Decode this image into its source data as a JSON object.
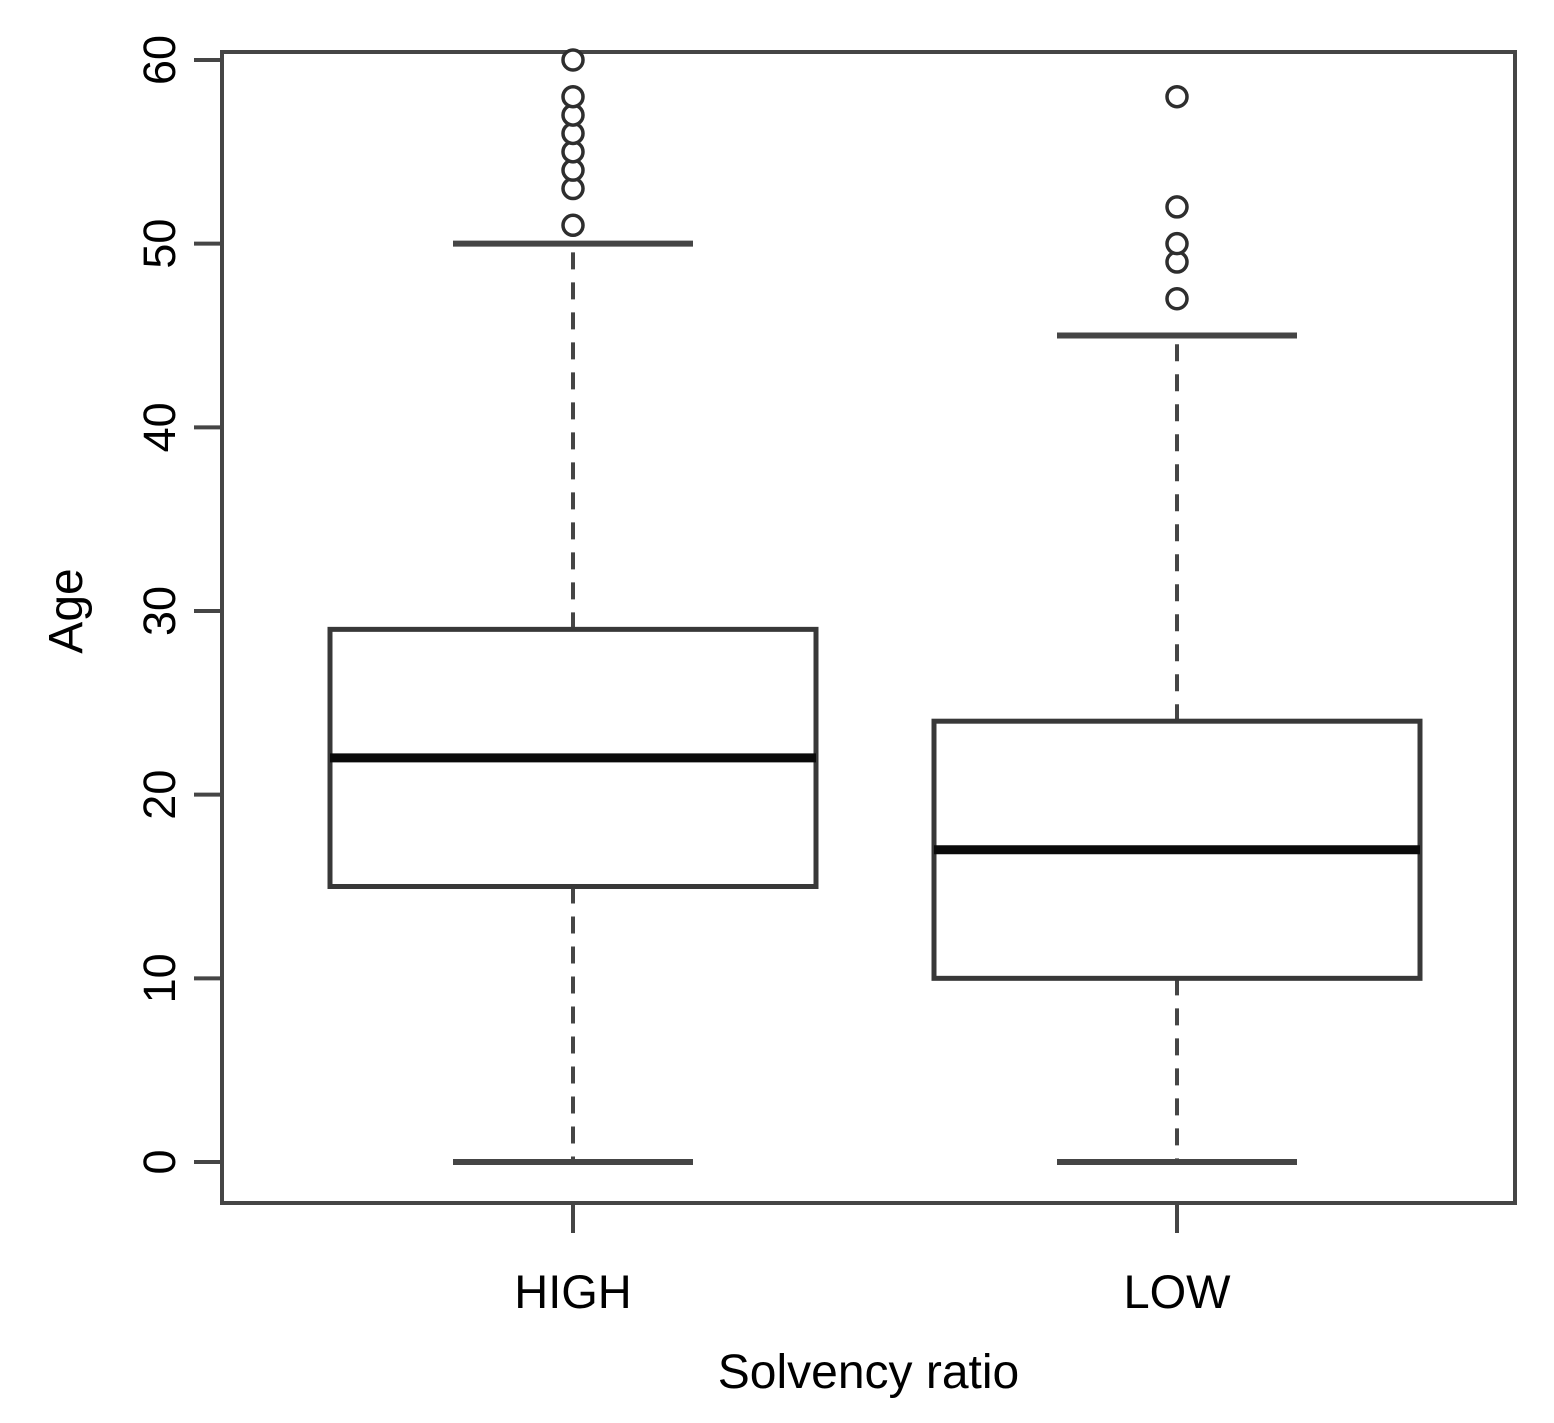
{
  "figure": {
    "background": "#ffffff",
    "line_color": "#454545",
    "box_line_color": "#383838",
    "median_color": "#0a0a0a",
    "text_color": "#000000"
  },
  "chart_data": {
    "type": "boxplot",
    "title": "",
    "xlabel": "Solvency ratio",
    "ylabel": "Age",
    "categories": [
      "HIGH",
      "LOW"
    ],
    "y_ticks": [
      0,
      10,
      20,
      30,
      40,
      50,
      60
    ],
    "ylim": [
      0,
      60
    ],
    "grid": false,
    "legend": "none",
    "orientation": "vertical",
    "series": [
      {
        "name": "HIGH",
        "whisker_low": 0,
        "q1": 15,
        "median": 22,
        "q3": 29,
        "whisker_high": 50,
        "outliers": [
          51,
          53,
          54,
          55,
          56,
          57,
          58,
          60
        ]
      },
      {
        "name": "LOW",
        "whisker_low": 0,
        "q1": 10,
        "median": 17,
        "q3": 24,
        "whisker_high": 45,
        "outliers": [
          47,
          49,
          50,
          52,
          58
        ]
      }
    ]
  }
}
